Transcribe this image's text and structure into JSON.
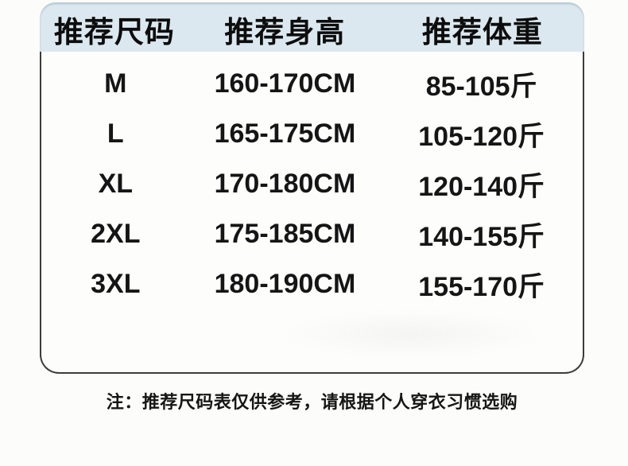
{
  "chart_data": {
    "type": "table",
    "columns": [
      "推荐尺码",
      "推荐身高",
      "推荐体重"
    ],
    "rows": [
      {
        "size": "M",
        "height": "160-170CM",
        "weight": "85-105斤"
      },
      {
        "size": "L",
        "height": "165-175CM",
        "weight": "105-120斤"
      },
      {
        "size": "XL",
        "height": "170-180CM",
        "weight": "120-140斤"
      },
      {
        "size": "2XL",
        "height": "175-185CM",
        "weight": "140-155斤"
      },
      {
        "size": "3XL",
        "height": "180-190CM",
        "weight": "155-170斤"
      }
    ]
  },
  "note": "注：推荐尺码表仅供参考，请根据个人穿衣习惯选购",
  "colors": {
    "header_bg": "#dbe8f0",
    "border": "#3c3c3c",
    "text": "#121212",
    "page_bg": "#fcfcfa"
  }
}
